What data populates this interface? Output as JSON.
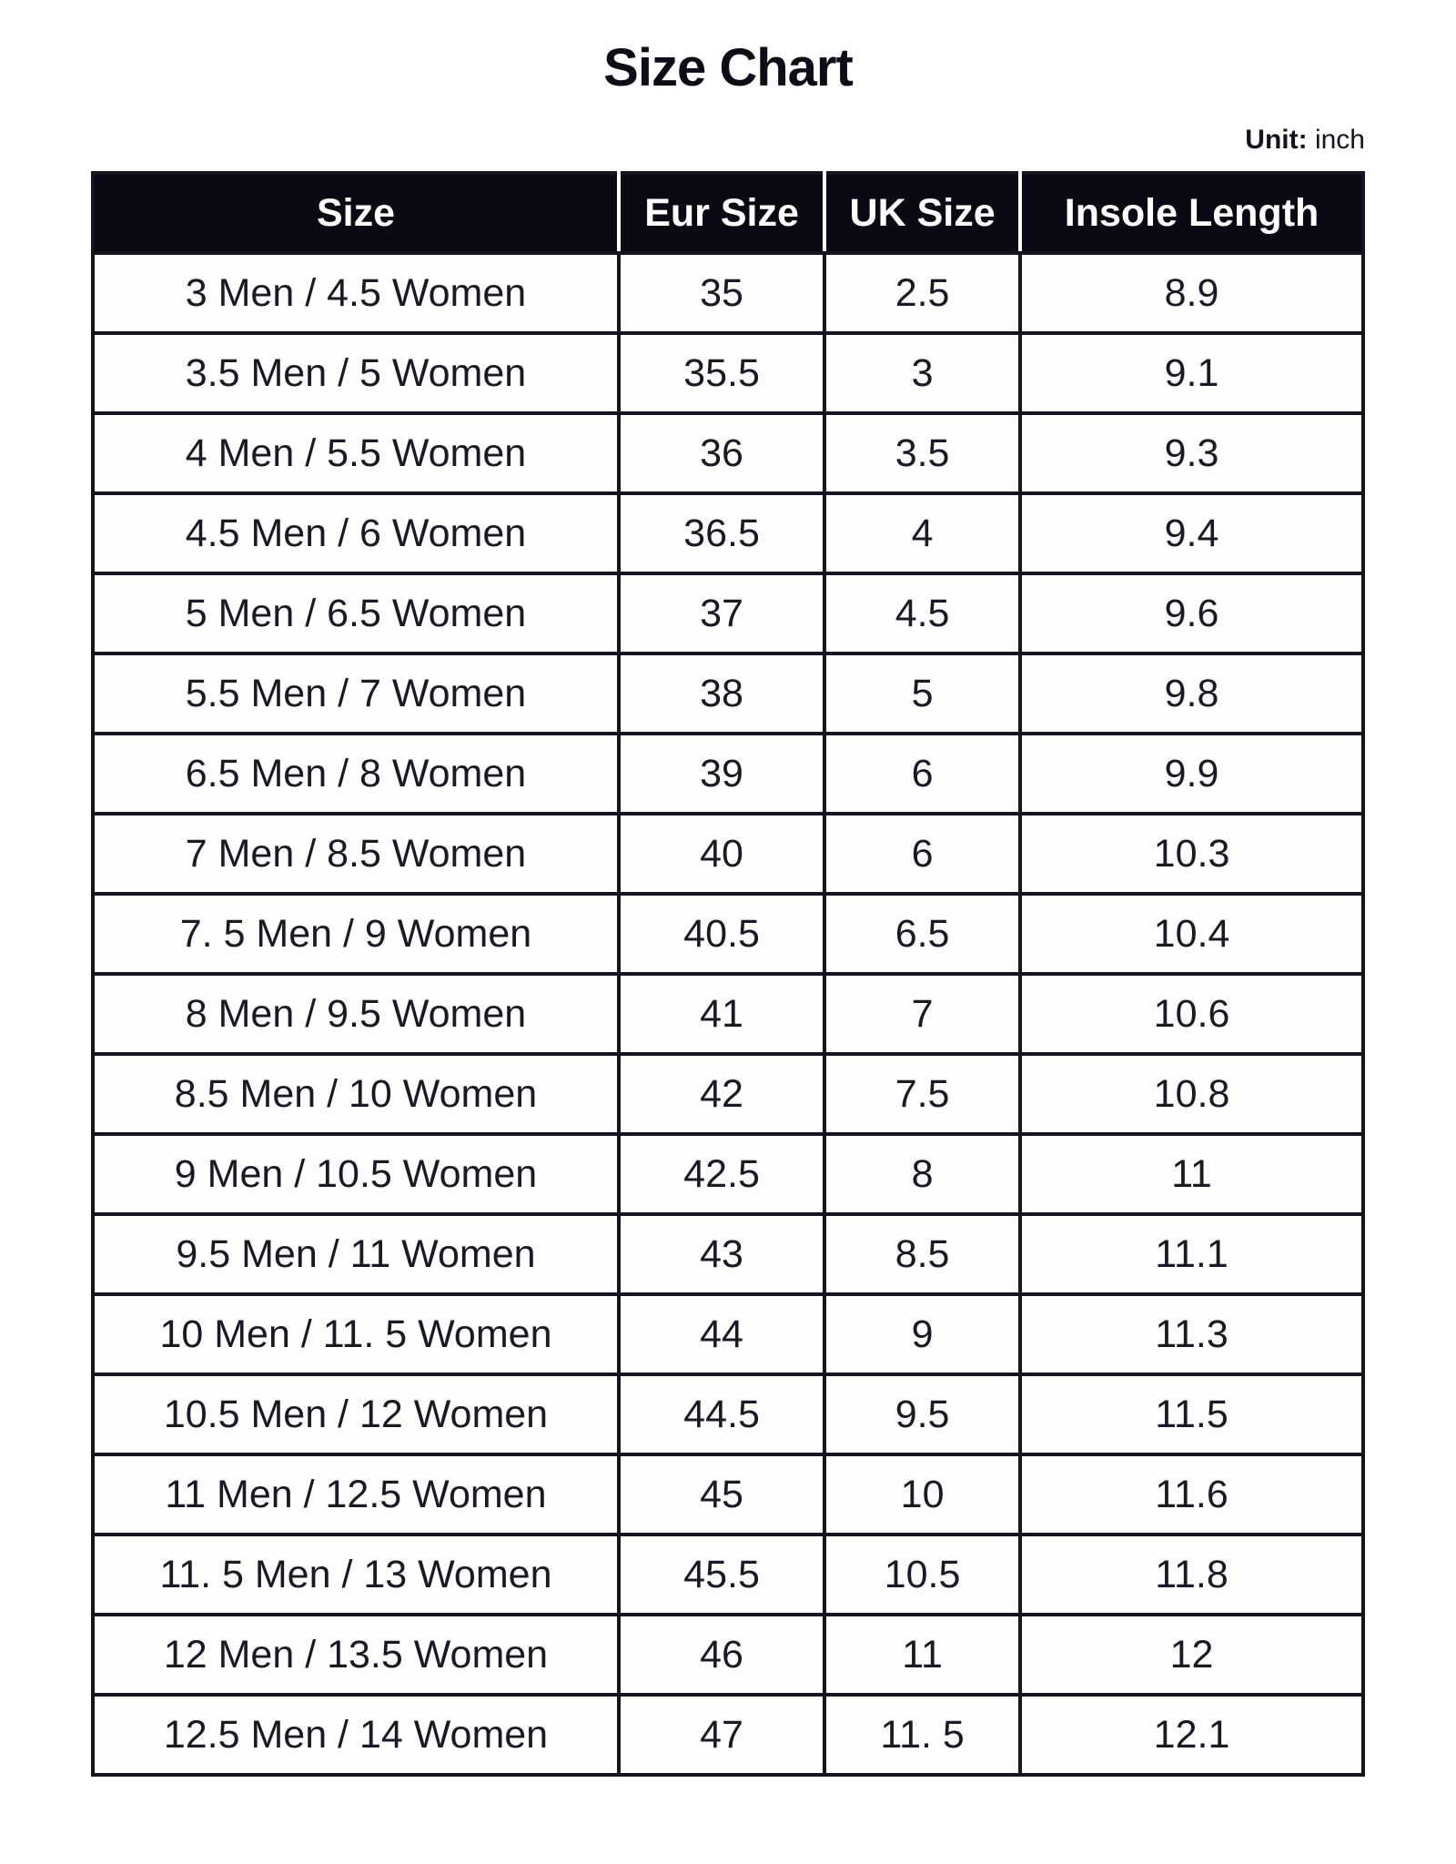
{
  "page": {
    "title": "Size Chart",
    "unit_label": "Unit:",
    "unit_value": "inch"
  },
  "colors": {
    "header_background": "#0a0a15",
    "header_text": "#ffffff",
    "body_text": "#1a1a26",
    "border": "#15151f",
    "page_background": "#ffffff"
  },
  "table": {
    "columns": [
      "Size",
      "Eur Size",
      "UK Size",
      "Insole Length"
    ],
    "rows": [
      [
        "3 Men / 4.5 Women",
        "35",
        "2.5",
        "8.9"
      ],
      [
        "3.5 Men / 5 Women",
        "35.5",
        "3",
        "9.1"
      ],
      [
        "4 Men / 5.5 Women",
        "36",
        "3.5",
        "9.3"
      ],
      [
        "4.5 Men / 6 Women",
        "36.5",
        "4",
        "9.4"
      ],
      [
        "5 Men / 6.5 Women",
        "37",
        "4.5",
        "9.6"
      ],
      [
        "5.5 Men / 7 Women",
        "38",
        "5",
        "9.8"
      ],
      [
        "6.5 Men / 8 Women",
        "39",
        "6",
        "9.9"
      ],
      [
        "7 Men / 8.5 Women",
        "40",
        "6",
        "10.3"
      ],
      [
        "7. 5 Men / 9 Women",
        "40.5",
        "6.5",
        "10.4"
      ],
      [
        "8 Men / 9.5 Women",
        "41",
        "7",
        "10.6"
      ],
      [
        "8.5 Men / 10 Women",
        "42",
        "7.5",
        "10.8"
      ],
      [
        "9 Men / 10.5 Women",
        "42.5",
        "8",
        "11"
      ],
      [
        "9.5 Men / 11 Women",
        "43",
        "8.5",
        "11.1"
      ],
      [
        "10 Men / 11. 5 Women",
        "44",
        "9",
        "11.3"
      ],
      [
        "10.5 Men / 12 Women",
        "44.5",
        "9.5",
        "11.5"
      ],
      [
        "11 Men / 12.5 Women",
        "45",
        "10",
        "11.6"
      ],
      [
        "11. 5 Men / 13 Women",
        "45.5",
        "10.5",
        "11.8"
      ],
      [
        "12 Men / 13.5 Women",
        "46",
        "11",
        "12"
      ],
      [
        "12.5 Men / 14 Women",
        "47",
        "11. 5",
        "12.1"
      ]
    ]
  }
}
